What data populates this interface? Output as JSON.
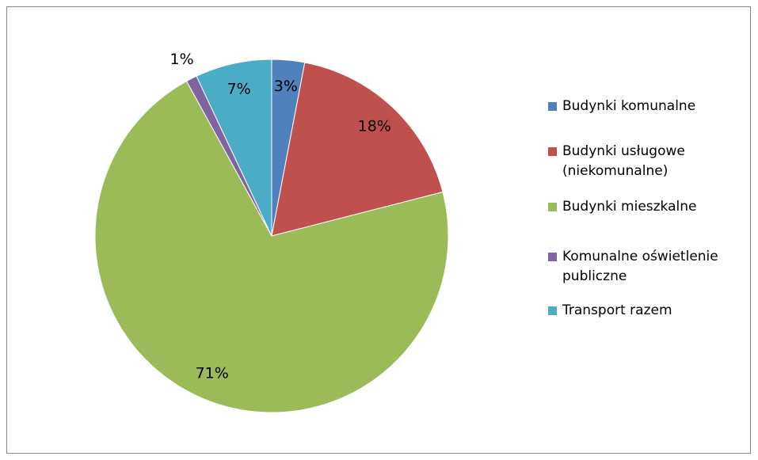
{
  "chart_data": {
    "type": "pie",
    "categories": [
      "Budynki komunalne",
      "Budynki usługowe (niekomunalne)",
      "Budynki mieszkalne",
      "Komunalne oświetlenie publiczne",
      "Transport razem"
    ],
    "values": [
      3,
      18,
      71,
      1,
      7
    ],
    "value_labels": [
      "3%",
      "18%",
      "71%",
      "1%",
      "7%"
    ],
    "colors": [
      "#4f81bd",
      "#c0504d",
      "#9bbb59",
      "#8064a2",
      "#4bacc6"
    ],
    "legend": "right"
  }
}
